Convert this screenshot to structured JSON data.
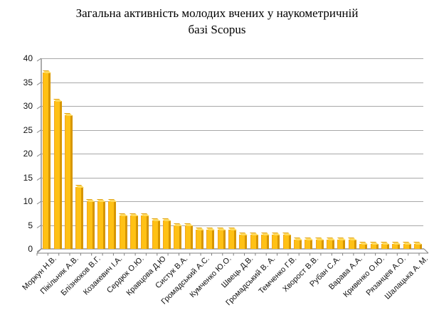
{
  "title": "Загальна активність молодих вчених у наукометричній базі Scopus",
  "chart_data": {
    "type": "bar",
    "title": "Загальна активність молодих вчених у наукометричній базі Scopus",
    "xlabel": "",
    "ylabel": "",
    "ylim": [
      0,
      40
    ],
    "yticks": [
      0,
      5,
      10,
      15,
      20,
      25,
      30,
      35,
      40
    ],
    "grid": true,
    "legend": "none",
    "style": "excel-3d-column",
    "bar_color": "#FFC115",
    "bar_side_color": "#D79600",
    "bar_top_color": "#FFD95C",
    "gridline_color": "#A8A8A8",
    "axis_color": "#7F7F7F",
    "values": [
      37,
      31,
      28,
      13,
      10,
      10,
      10,
      7,
      7,
      7,
      6,
      6,
      5,
      5,
      4,
      4,
      4,
      4,
      3,
      3,
      3,
      3,
      3,
      2,
      2,
      2,
      2,
      2,
      2,
      1,
      1,
      1,
      1,
      1,
      1
    ],
    "label_every_nth_bar": 2,
    "categories": [
      "Моркун Н.В.",
      "Пікільняк А.В.",
      "Блізнюков В.Г.",
      "Козакевич І.А.",
      "Сердюк О.Ю.",
      "Кравцова Д.Ю",
      "Систук В.А.",
      "Громадський А.С.",
      "Кумченко Ю.О.",
      "Швець Д.В.",
      "Громадський В. А.",
      "Темченко Г.В.",
      "Хворост В.В.",
      "Рубан С.А.",
      "Варава А.А.",
      "Кривенко О.Ю.",
      "Рязанцев А.О.",
      "Шалацька А. М."
    ]
  }
}
